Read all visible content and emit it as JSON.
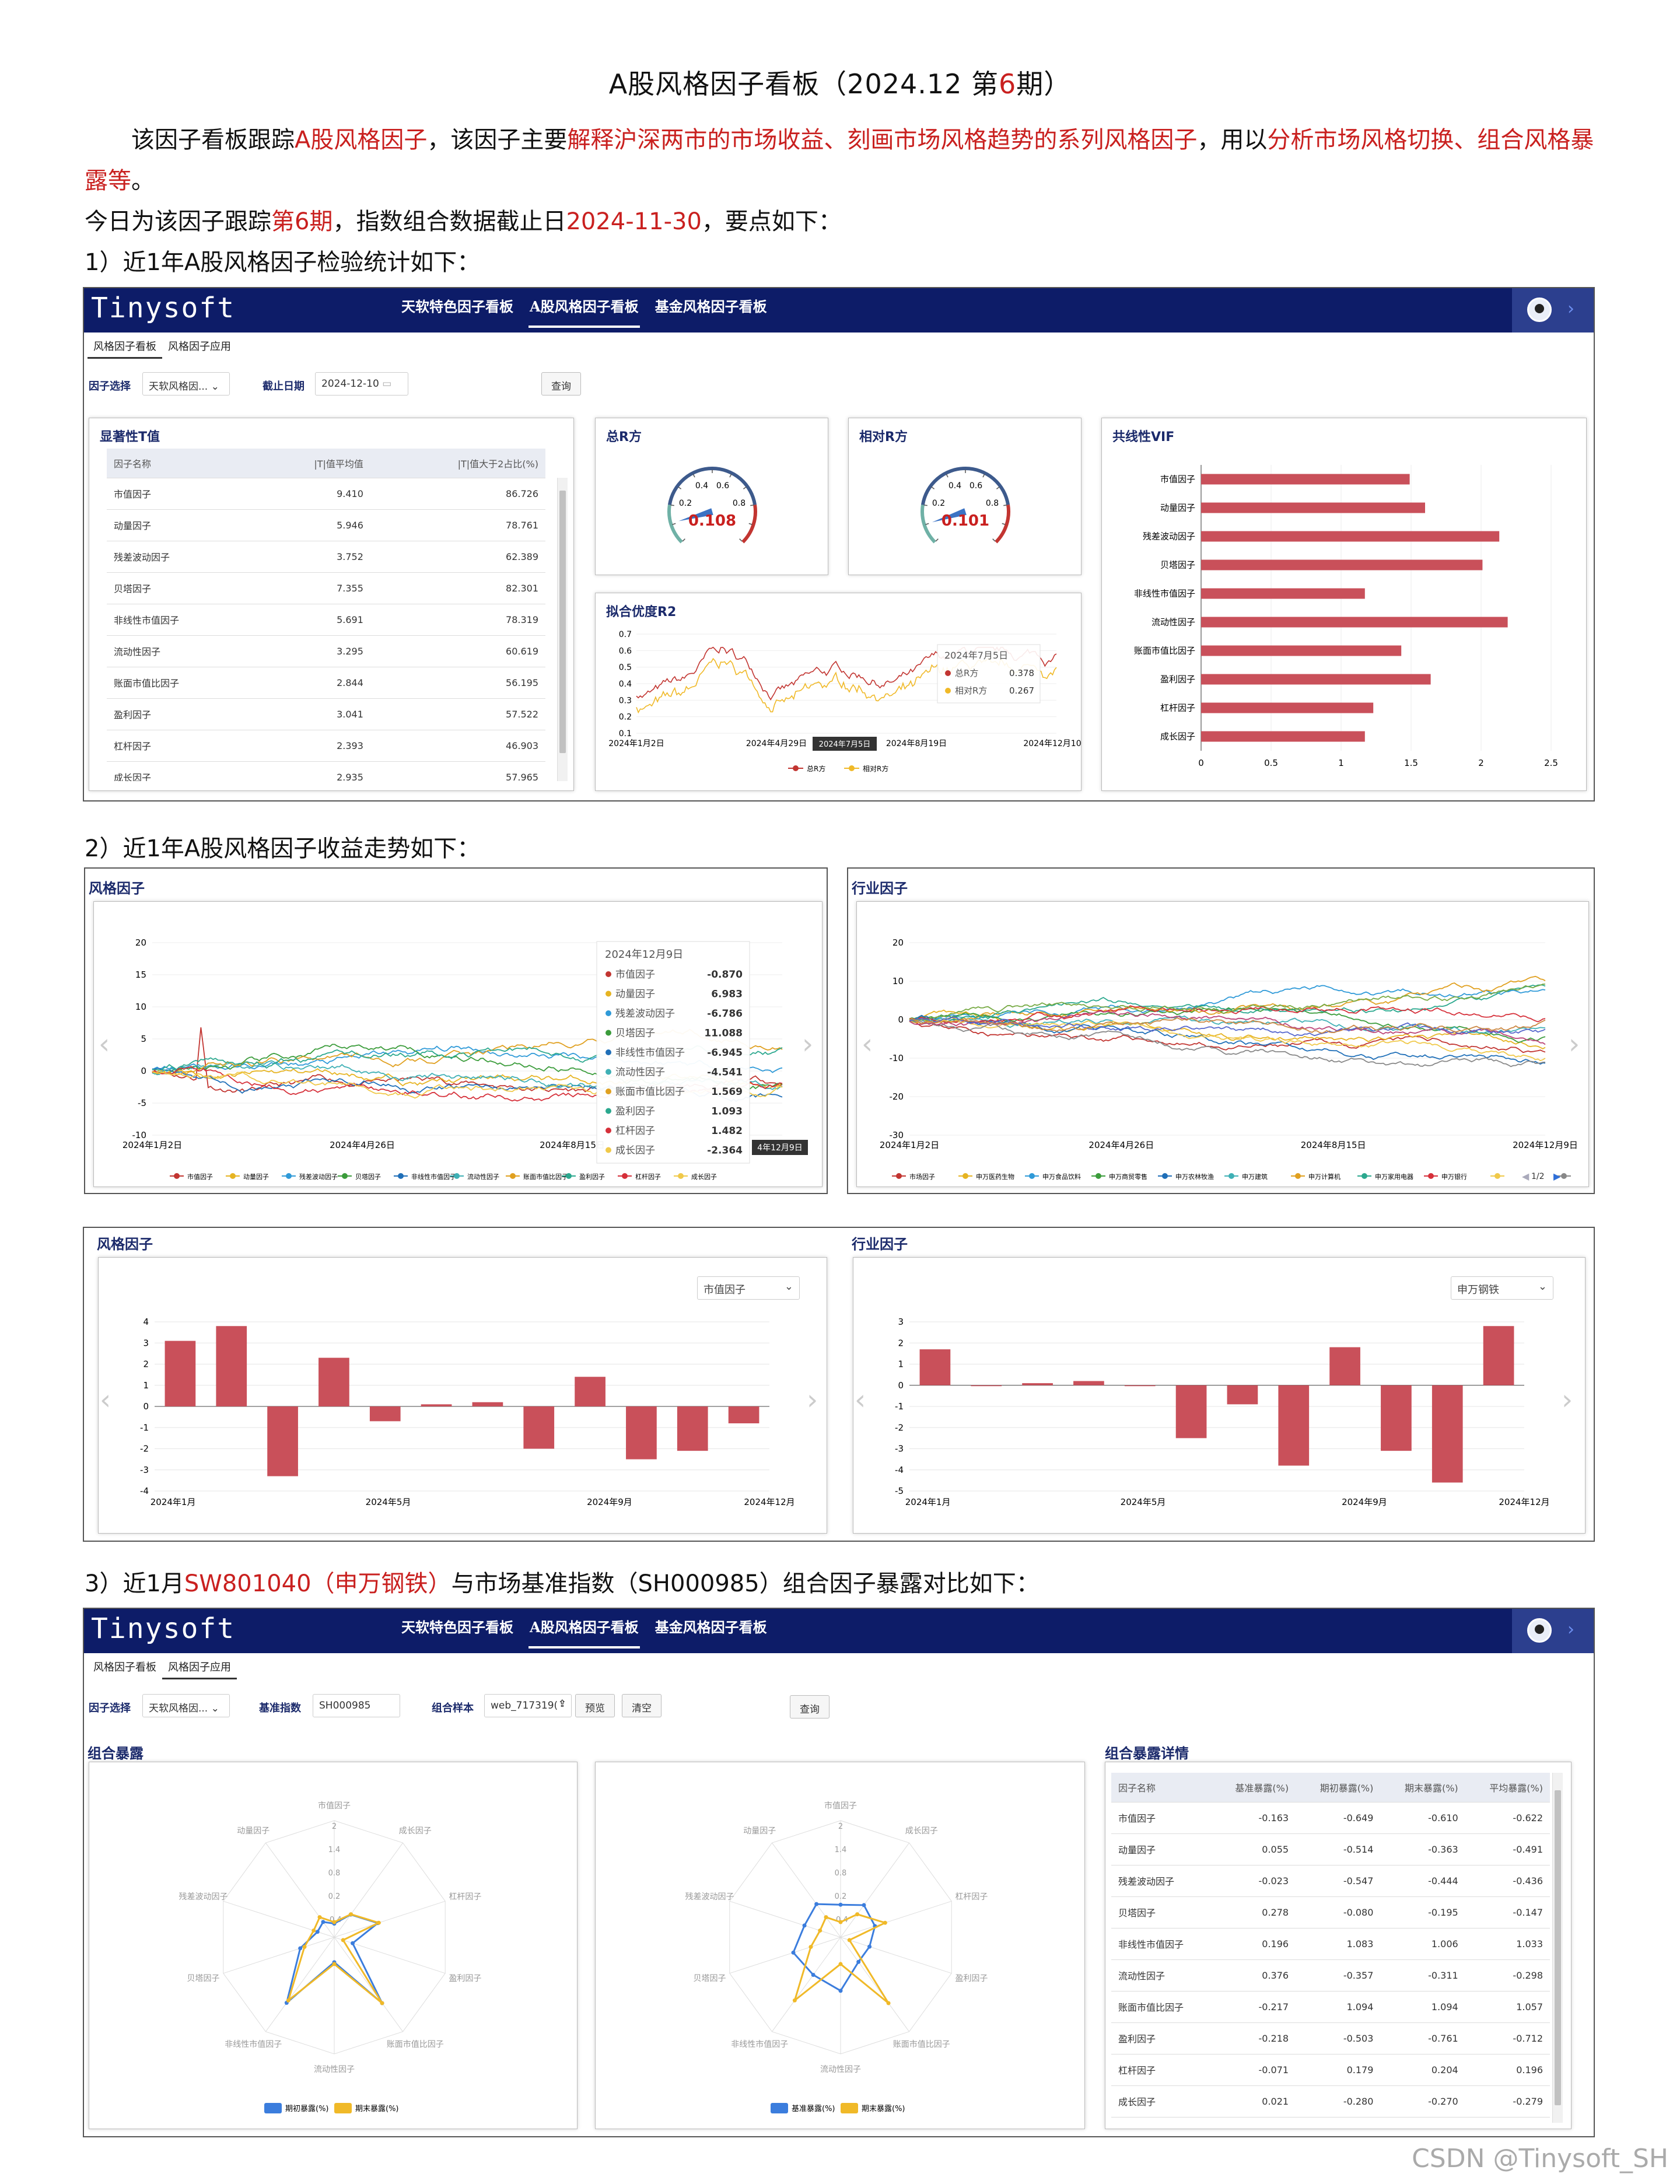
{
  "doc": {
    "title_pre": "A股风格因子看板（2024.12 第",
    "title_num": "6",
    "title_post": "期）",
    "p1_a": "该因子看板跟踪",
    "p1_b": "A股风格因子",
    "p1_c": "，该因子主要",
    "p1_d": "解释沪深两市的市场收益、刻画市场风格趋势的系列风格因子",
    "p1_e": "，用以",
    "p1_f": "分析市场风格切换、组合风格暴露等",
    "p1_g": "。",
    "p2_a": "今日为该因子跟踪",
    "p2_b": "第6期",
    "p2_c": "，指数组合数据截止日",
    "p2_d": "2024-11-30",
    "p2_e": "，要点如下：",
    "s1": "1）近1年A股风格因子检验统计如下：",
    "s2": "2）近1年A股风格因子收益走势如下：",
    "s3_a": "3）近1月",
    "s3_b": "SW801040（申万钢铁）",
    "s3_c": "与市场基准指数（SH000985）组合因子暴露对比如下："
  },
  "app": {
    "logo": "Tinysoft",
    "nav": [
      "天软特色因子看板",
      "A股风格因子看板",
      "基金风格因子看板"
    ],
    "subtabs": [
      "风格因子看板",
      "风格因子应用"
    ]
  },
  "panel1": {
    "factor_label": "因子选择",
    "factor_value": "天软风格因...",
    "date_label": "截止日期",
    "date_value": "2024-12-10",
    "query": "查询",
    "tstat_title": "显著性T值",
    "tstat_headers": [
      "因子名称",
      "|T|值平均值",
      "|T|值大于2占比(%)"
    ],
    "tstat_rows": [
      [
        "市值因子",
        "9.410",
        "86.726"
      ],
      [
        "动量因子",
        "5.946",
        "78.761"
      ],
      [
        "残差波动因子",
        "3.752",
        "62.389"
      ],
      [
        "贝塔因子",
        "7.355",
        "82.301"
      ],
      [
        "非线性市值因子",
        "5.691",
        "78.319"
      ],
      [
        "流动性因子",
        "3.295",
        "60.619"
      ],
      [
        "账面市值比因子",
        "2.844",
        "56.195"
      ],
      [
        "盈利因子",
        "3.041",
        "57.522"
      ],
      [
        "杠杆因子",
        "2.393",
        "46.903"
      ],
      [
        "成长因子",
        "2.935",
        "57.965"
      ]
    ],
    "r2_total_title": "总R方",
    "r2_total_value": "0.108",
    "r2_rel_title": "相对R方",
    "r2_rel_value": "0.101",
    "gauge_ticks": [
      "0.4",
      "0.6",
      "0.2",
      "0.8"
    ],
    "fit_title": "拟合优度R2",
    "fit_yticks": [
      "0.7",
      "0.6",
      "0.5",
      "0.4",
      "0.3",
      "0.2",
      "0.1"
    ],
    "fit_xticks": [
      "2024年1月2日",
      "2024年4月29日",
      "2024年8月19日",
      "2024年12月10日"
    ],
    "fit_tooltip_date": "2024年7月5日",
    "fit_tooltip_rows": [
      [
        "总R方",
        "0.378"
      ],
      [
        "相对R方",
        "0.267"
      ]
    ],
    "fit_axis_tag": "2024年7月5日",
    "fit_legend": [
      "总R方",
      "相对R方"
    ],
    "vif_title": "共线性VIF",
    "vif_xticks": [
      "0",
      "0.5",
      "1",
      "1.5",
      "2",
      "2.5"
    ]
  },
  "panel2": {
    "style_title": "风格因子",
    "industry_title": "行业因子",
    "style_yticks": [
      "20",
      "15",
      "10",
      "5",
      "0",
      "-5",
      "-10"
    ],
    "industry_yticks": [
      "20",
      "10",
      "0",
      "-10",
      "-20",
      "-30"
    ],
    "style_xticks": [
      "2024年1月2日",
      "2024年4月26日",
      "2024年8月15日"
    ],
    "industry_xticks": [
      "2024年1月2日",
      "2024年4月26日",
      "2024年8月15日",
      "2024年12月9日"
    ],
    "style_tooltip_date": "2024年12月9日",
    "style_tooltip_rows": [
      [
        "市值因子",
        "-0.870"
      ],
      [
        "动量因子",
        "6.983"
      ],
      [
        "残差波动因子",
        "-6.786"
      ],
      [
        "贝塔因子",
        "11.088"
      ],
      [
        "非线性市值因子",
        "-6.945"
      ],
      [
        "流动性因子",
        "-4.541"
      ],
      [
        "账面市值比因子",
        "1.569"
      ],
      [
        "盈利因子",
        "1.093"
      ],
      [
        "杠杆因子",
        "1.482"
      ],
      [
        "成长因子",
        "-2.364"
      ]
    ],
    "style_axis_tag": "4年12月9日",
    "style_legend": [
      "市值因子",
      "动量因子",
      "残差波动因子",
      "贝塔因子",
      "非线性市值因子",
      "流动性因子",
      "账面市值比因子",
      "盈利因子",
      "杠杆因子",
      "成长因子"
    ],
    "industry_legend": [
      "市场因子",
      "申万医药生物",
      "申万食品饮料",
      "申万商贸零售",
      "申万农林牧渔",
      "申万建筑",
      "申万计算机",
      "申万家用电器",
      "申万银行"
    ],
    "industry_page": "1/2"
  },
  "panel3": {
    "style_title": "风格因子",
    "industry_title": "行业因子",
    "style_select": "市值因子",
    "industry_select": "申万钢铁",
    "style_yticks": [
      "4",
      "3",
      "2",
      "1",
      "0",
      "-1",
      "-2",
      "-3",
      "-4"
    ],
    "industry_yticks": [
      "3",
      "2",
      "1",
      "0",
      "-1",
      "-2",
      "-3",
      "-4",
      "-5"
    ],
    "xticks": [
      "2024年1月",
      "2024年5月",
      "2024年9月",
      "2024年12月"
    ]
  },
  "panel4": {
    "factor_label": "因子选择",
    "factor_value": "天软风格因...",
    "bench_label": "基准指数",
    "bench_value": "SH000985",
    "sample_label": "组合样本",
    "sample_value": "web_717319(",
    "preview": "预览",
    "clear": "清空",
    "query": "查询",
    "exposure_title": "组合暴露",
    "detail_title": "组合暴露详情",
    "radar_axes": [
      "市值因子",
      "成长因子",
      "杠杆因子",
      "盈利因子",
      "账面市值比因子",
      "流动性因子",
      "非线性市值因子",
      "贝塔因子",
      "残差波动因子",
      "动量因子"
    ],
    "radar_ticks": [
      "2",
      "1.4",
      "0.8",
      "0.2",
      "-0.4"
    ],
    "radar1_legend": [
      "期初暴露(%)",
      "期末暴露(%)"
    ],
    "radar2_legend": [
      "基准暴露(%)",
      "期末暴露(%)"
    ],
    "detail_headers": [
      "因子名称",
      "基准暴露(%)",
      "期初暴露(%)",
      "期末暴露(%)",
      "平均暴露(%)"
    ],
    "detail_rows": [
      [
        "市值因子",
        "-0.163",
        "-0.649",
        "-0.610",
        "-0.622"
      ],
      [
        "动量因子",
        "0.055",
        "-0.514",
        "-0.363",
        "-0.491"
      ],
      [
        "残差波动因子",
        "-0.023",
        "-0.547",
        "-0.444",
        "-0.436"
      ],
      [
        "贝塔因子",
        "0.278",
        "-0.080",
        "-0.195",
        "-0.147"
      ],
      [
        "非线性市值因子",
        "0.196",
        "1.083",
        "1.006",
        "1.033"
      ],
      [
        "流动性因子",
        "0.376",
        "-0.357",
        "-0.311",
        "-0.298"
      ],
      [
        "账面市值比因子",
        "-0.217",
        "1.094",
        "1.094",
        "1.057"
      ],
      [
        "盈利因子",
        "-0.218",
        "-0.503",
        "-0.761",
        "-0.712"
      ],
      [
        "杠杆因子",
        "-0.071",
        "0.179",
        "0.204",
        "0.196"
      ],
      [
        "成长因子",
        "0.021",
        "-0.280",
        "-0.270",
        "-0.279"
      ]
    ]
  },
  "colors": {
    "navy": "#0d1c68",
    "red": "#c9201f",
    "bar": "#c9505a",
    "gold": "#f0b928",
    "blue": "#3b7ddd"
  },
  "chart_data": [
    {
      "type": "bar",
      "title": "共线性VIF",
      "categories": [
        "市值因子",
        "动量因子",
        "残差波动因子",
        "贝塔因子",
        "非线性市值因子",
        "流动性因子",
        "账面市值比因子",
        "盈利因子",
        "杠杆因子",
        "成长因子"
      ],
      "values": [
        1.49,
        1.6,
        2.13,
        2.01,
        1.17,
        2.19,
        1.43,
        1.64,
        1.23,
        1.17
      ],
      "xlim": [
        0,
        2.5
      ],
      "orientation": "horizontal"
    },
    {
      "type": "bar",
      "title": "风格因子",
      "series_label": "市值因子",
      "values": [
        3.1,
        3.8,
        -3.3,
        2.3,
        -0.7,
        0.1,
        0.2,
        -2.0,
        1.4,
        -2.5,
        -2.1,
        -0.8
      ],
      "ylim": [
        -4,
        4
      ]
    },
    {
      "type": "bar",
      "title": "行业因子",
      "series_label": "申万钢铁",
      "values": [
        1.7,
        0.0,
        0.1,
        0.2,
        0.0,
        -2.5,
        -0.9,
        -3.8,
        1.8,
        -3.1,
        -4.6,
        2.8
      ],
      "ylim": [
        -5,
        3
      ]
    },
    {
      "type": "radar",
      "axes": [
        "市值因子",
        "成长因子",
        "杠杆因子",
        "盈利因子",
        "账面市值比因子",
        "流动性因子",
        "非线性市值因子",
        "贝塔因子",
        "残差波动因子",
        "动量因子"
      ],
      "range": [
        -1,
        2
      ],
      "series": [
        {
          "name": "期初暴露(%)",
          "values": [
            -0.649,
            -0.28,
            0.179,
            -0.503,
            1.094,
            -0.357,
            1.083,
            -0.08,
            -0.547,
            -0.514
          ]
        },
        {
          "name": "期末暴露(%)",
          "values": [
            -0.61,
            -0.27,
            0.204,
            -0.761,
            1.094,
            -0.311,
            1.006,
            -0.195,
            -0.444,
            -0.363
          ]
        }
      ]
    },
    {
      "type": "radar",
      "axes": [
        "市值因子",
        "成长因子",
        "杠杆因子",
        "盈利因子",
        "账面市值比因子",
        "流动性因子",
        "非线性市值因子",
        "贝塔因子",
        "残差波动因子",
        "动量因子"
      ],
      "range": [
        -1,
        2
      ],
      "series": [
        {
          "name": "基准暴露(%)",
          "values": [
            -0.163,
            0.021,
            -0.071,
            -0.218,
            -0.217,
            0.376,
            0.196,
            0.278,
            -0.023,
            0.055
          ]
        },
        {
          "name": "期末暴露(%)",
          "values": [
            -0.61,
            -0.27,
            0.204,
            -0.761,
            1.094,
            -0.311,
            1.006,
            -0.195,
            -0.444,
            -0.363
          ]
        }
      ]
    }
  ],
  "watermark": "CSDN @Tinysoft_SH"
}
